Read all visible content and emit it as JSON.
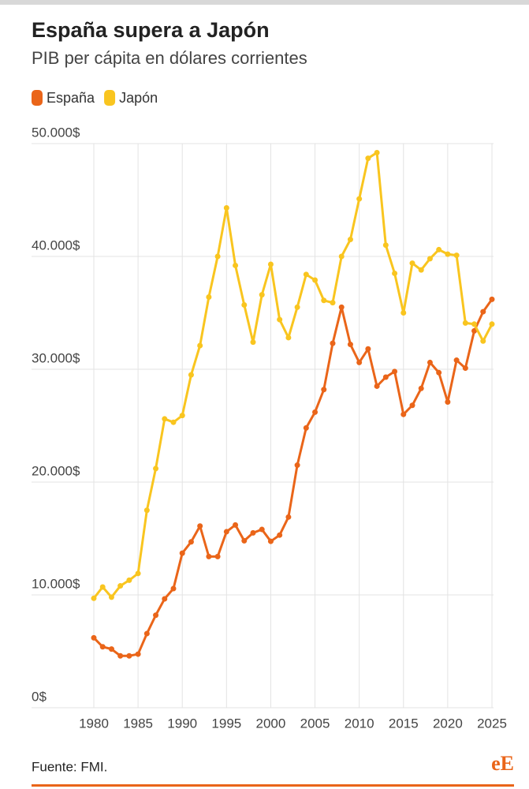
{
  "chart_data": {
    "type": "line",
    "title": "España supera a Japón",
    "subtitle": "PIB per cápita en dólares corrientes",
    "source": "Fuente: FMI.",
    "logo": "eE",
    "x": [
      1980,
      1981,
      1982,
      1983,
      1984,
      1985,
      1986,
      1987,
      1988,
      1989,
      1990,
      1991,
      1992,
      1993,
      1994,
      1995,
      1996,
      1997,
      1998,
      1999,
      2000,
      2001,
      2002,
      2003,
      2004,
      2005,
      2006,
      2007,
      2008,
      2009,
      2010,
      2011,
      2012,
      2013,
      2014,
      2015,
      2016,
      2017,
      2018,
      2019,
      2020,
      2021,
      2022,
      2023,
      2024,
      2025
    ],
    "series": [
      {
        "name": "España",
        "color": "#ea6519",
        "values": [
          6200,
          5400,
          5200,
          4600,
          4600,
          4750,
          6570,
          8200,
          9650,
          10560,
          13700,
          14700,
          16100,
          13400,
          13400,
          15600,
          16200,
          14800,
          15500,
          15800,
          14750,
          15300,
          16900,
          21500,
          24800,
          26200,
          28200,
          32300,
          35500,
          32200,
          30600,
          31800,
          28500,
          29300,
          29800,
          26000,
          26800,
          28300,
          30600,
          29700,
          27100,
          30800,
          30100,
          33400,
          35100,
          36200
        ]
      },
      {
        "name": "Japón",
        "color": "#f9c51f",
        "values": [
          9700,
          10700,
          9800,
          10800,
          11300,
          11900,
          17500,
          21200,
          25600,
          25300,
          25900,
          29500,
          32100,
          36400,
          40000,
          44300,
          39200,
          35700,
          32400,
          36600,
          39300,
          34400,
          32800,
          35500,
          38400,
          37900,
          36100,
          35900,
          40000,
          41500,
          45100,
          48700,
          49200,
          41000,
          38500,
          35000,
          39400,
          38800,
          39800,
          40600,
          40200,
          40100,
          34100,
          34000,
          32500,
          34000
        ]
      }
    ],
    "xlim": [
      1980,
      2025
    ],
    "xticks": [
      1980,
      1985,
      1990,
      1995,
      2000,
      2005,
      2010,
      2015,
      2020,
      2025
    ],
    "ylim": [
      0,
      50000
    ],
    "yticks": [
      {
        "value": 0,
        "label": "0$"
      },
      {
        "value": 10000,
        "label": "10.000$"
      },
      {
        "value": 20000,
        "label": "20.000$"
      },
      {
        "value": 30000,
        "label": "30.000$"
      },
      {
        "value": 40000,
        "label": "40.000$"
      },
      {
        "value": 50000,
        "label": "50.000$"
      }
    ],
    "grid": true
  }
}
